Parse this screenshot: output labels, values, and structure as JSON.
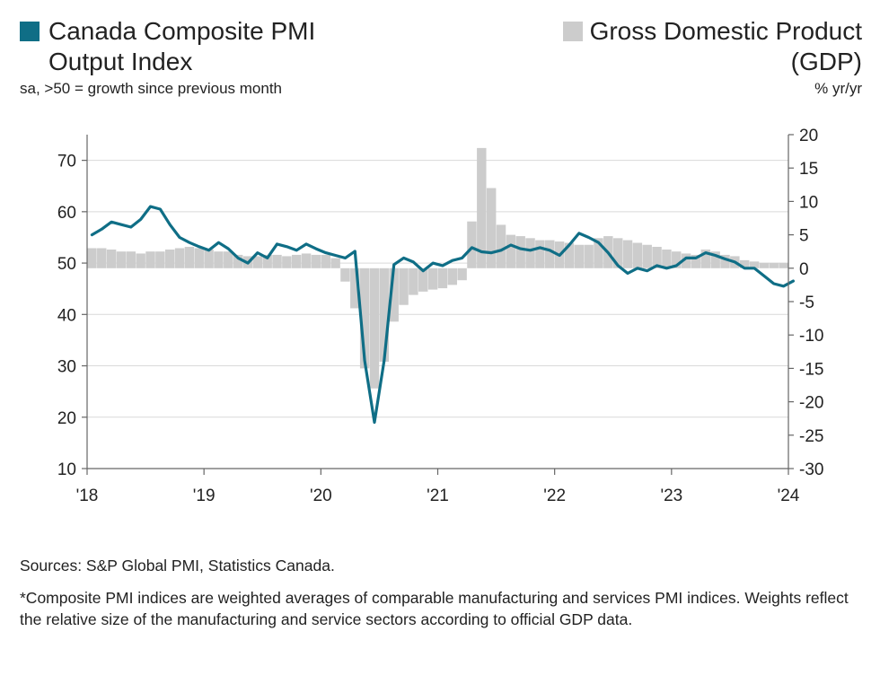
{
  "legend": {
    "left_title_line1": "Canada Composite PMI",
    "left_title_line2": "Output Index",
    "left_subtitle": "sa, >50 = growth since previous month",
    "right_title_line1": "Gross Domestic Product",
    "right_title_line2": "(GDP)",
    "right_subtitle": "% yr/yr"
  },
  "footer": {
    "sources": "Sources: S&P Global PMI, Statistics Canada.",
    "note": "*Composite PMI indices are weighted averages of comparable manufacturing and services PMI indices. Weights reflect the relative size of the manufacturing and service sectors according to official GDP data."
  },
  "colors": {
    "pmi_line": "#0f6e86",
    "gdp_bars": "#cccccc",
    "axis": "#666666",
    "grid": "#d9d9d9"
  },
  "chart_data": {
    "type": "line+bar",
    "x_axis": {
      "ticks": [
        "'18",
        "'19",
        "'20",
        "'21",
        "'22",
        "'23",
        "'24"
      ],
      "range": [
        "2018-01",
        "2024-01"
      ]
    },
    "y_left": {
      "range": [
        10,
        75
      ],
      "ticks": [
        10,
        20,
        30,
        40,
        50,
        60,
        70
      ]
    },
    "y_right": {
      "range": [
        -30,
        20
      ],
      "ticks": [
        20,
        15,
        10,
        5,
        0,
        -5,
        -10,
        -15,
        -20,
        -25,
        -30
      ]
    },
    "grid": true,
    "series": [
      {
        "name": "Canada Composite PMI Output Index",
        "axis": "left",
        "style": "line",
        "color": "#0f6e86",
        "start": "2018-01",
        "frequency": "monthly",
        "values": [
          55.5,
          56.6,
          58.0,
          57.5,
          57.0,
          58.5,
          61.0,
          60.5,
          57.5,
          55.0,
          54.0,
          53.2,
          52.5,
          54.0,
          52.8,
          51.0,
          50.0,
          52.0,
          51.0,
          53.7,
          53.2,
          52.5,
          53.7,
          52.8,
          52.0,
          51.5,
          51.0,
          52.3,
          31.0,
          19.0,
          31.0,
          49.7,
          51.0,
          50.2,
          48.5,
          50.0,
          49.5,
          50.5,
          51.0,
          53.0,
          52.2,
          52.0,
          52.5,
          53.5,
          52.8,
          52.5,
          53.0,
          52.5,
          51.5,
          53.5,
          55.8,
          55.0,
          54.0,
          52.0,
          49.5,
          48.0,
          49.0,
          48.5,
          49.5,
          49.0,
          49.5,
          51.0,
          51.0,
          52.0,
          51.5,
          50.8,
          50.2,
          49.0,
          49.0,
          47.5,
          46.0,
          45.5,
          46.5
        ]
      },
      {
        "name": "Gross Domestic Product (GDP)",
        "axis": "right",
        "style": "bar",
        "color": "#cccccc",
        "start": "2018-01",
        "frequency": "monthly",
        "values": [
          3.0,
          3.0,
          2.8,
          2.5,
          2.5,
          2.2,
          2.5,
          2.5,
          2.8,
          3.0,
          3.2,
          3.0,
          2.8,
          2.5,
          2.5,
          2.0,
          1.8,
          1.8,
          2.0,
          2.0,
          1.8,
          2.0,
          2.2,
          2.0,
          2.0,
          1.5,
          -2.0,
          -6.0,
          -15.0,
          -18.0,
          -14.0,
          -8.0,
          -5.5,
          -4.0,
          -3.5,
          -3.2,
          -3.0,
          -2.5,
          -1.8,
          7.0,
          18.0,
          12.0,
          6.5,
          5.0,
          4.8,
          4.5,
          4.2,
          4.2,
          4.0,
          3.8,
          3.5,
          3.5,
          4.5,
          4.8,
          4.5,
          4.2,
          3.8,
          3.5,
          3.2,
          2.8,
          2.5,
          2.2,
          2.0,
          2.8,
          2.5,
          2.0,
          1.8,
          1.2,
          1.0,
          0.8,
          0.8,
          0.8
        ]
      }
    ]
  }
}
